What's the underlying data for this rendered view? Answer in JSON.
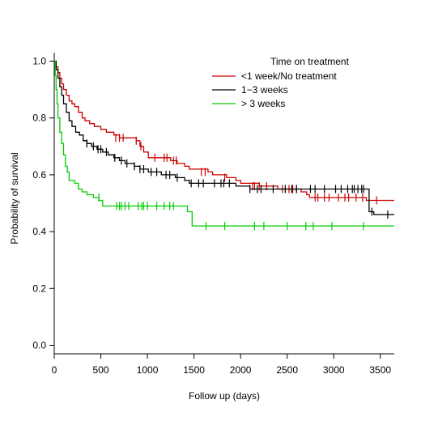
{
  "chart_data": {
    "type": "line",
    "subtype": "kaplan-meier",
    "xlabel": "Follow up (days)",
    "ylabel": "Probability of survival",
    "xlim": [
      0,
      3650
    ],
    "ylim": [
      -0.03,
      1.03
    ],
    "x_ticks": [
      0,
      500,
      1000,
      1500,
      2000,
      2500,
      3000,
      3500
    ],
    "y_ticks": [
      0.0,
      0.2,
      0.4,
      0.6,
      0.8,
      1.0
    ],
    "y_tick_labels": [
      "0.0",
      "0.2",
      "0.4",
      "0.6",
      "0.8",
      "1.0"
    ],
    "grid": false,
    "legend": {
      "title": "Time on treatment",
      "position": "top-right"
    },
    "series": [
      {
        "name": "<1 week/No treatment",
        "color": "#cc0000",
        "steps": [
          [
            0,
            1.0
          ],
          [
            20,
            0.98
          ],
          [
            40,
            0.96
          ],
          [
            60,
            0.94
          ],
          [
            80,
            0.92
          ],
          [
            100,
            0.9
          ],
          [
            130,
            0.88
          ],
          [
            160,
            0.86
          ],
          [
            190,
            0.85
          ],
          [
            220,
            0.84
          ],
          [
            260,
            0.82
          ],
          [
            300,
            0.8
          ],
          [
            330,
            0.79
          ],
          [
            380,
            0.78
          ],
          [
            430,
            0.77
          ],
          [
            500,
            0.76
          ],
          [
            560,
            0.75
          ],
          [
            640,
            0.74
          ],
          [
            700,
            0.73
          ],
          [
            780,
            0.73
          ],
          [
            880,
            0.72
          ],
          [
            920,
            0.7
          ],
          [
            960,
            0.68
          ],
          [
            1010,
            0.66
          ],
          [
            1120,
            0.66
          ],
          [
            1250,
            0.65
          ],
          [
            1320,
            0.64
          ],
          [
            1400,
            0.63
          ],
          [
            1450,
            0.62
          ],
          [
            1650,
            0.61
          ],
          [
            1700,
            0.6
          ],
          [
            1850,
            0.59
          ],
          [
            1950,
            0.58
          ],
          [
            2000,
            0.57
          ],
          [
            2200,
            0.56
          ],
          [
            2400,
            0.55
          ],
          [
            2650,
            0.54
          ],
          [
            2710,
            0.53
          ],
          [
            2740,
            0.52
          ],
          [
            3350,
            0.51
          ],
          [
            3650,
            0.51
          ]
        ],
        "censored": [
          [
            660,
            0.73
          ],
          [
            700,
            0.73
          ],
          [
            740,
            0.73
          ],
          [
            880,
            0.72
          ],
          [
            930,
            0.7
          ],
          [
            1080,
            0.66
          ],
          [
            1180,
            0.66
          ],
          [
            1210,
            0.66
          ],
          [
            1280,
            0.65
          ],
          [
            1310,
            0.65
          ],
          [
            1580,
            0.61
          ],
          [
            1620,
            0.61
          ],
          [
            1830,
            0.59
          ],
          [
            2130,
            0.56
          ],
          [
            2150,
            0.56
          ],
          [
            2200,
            0.56
          ],
          [
            2280,
            0.56
          ],
          [
            2450,
            0.55
          ],
          [
            2520,
            0.55
          ],
          [
            2560,
            0.55
          ],
          [
            2600,
            0.55
          ],
          [
            2800,
            0.52
          ],
          [
            2830,
            0.52
          ],
          [
            2900,
            0.52
          ],
          [
            2950,
            0.52
          ],
          [
            3050,
            0.52
          ],
          [
            3120,
            0.52
          ],
          [
            3160,
            0.52
          ],
          [
            3240,
            0.52
          ],
          [
            3310,
            0.52
          ],
          [
            3460,
            0.51
          ]
        ]
      },
      {
        "name": "1−3 weeks",
        "color": "#000000",
        "steps": [
          [
            0,
            1.0
          ],
          [
            20,
            0.97
          ],
          [
            40,
            0.94
          ],
          [
            60,
            0.91
          ],
          [
            80,
            0.88
          ],
          [
            100,
            0.85
          ],
          [
            130,
            0.82
          ],
          [
            160,
            0.79
          ],
          [
            190,
            0.77
          ],
          [
            230,
            0.75
          ],
          [
            270,
            0.74
          ],
          [
            310,
            0.72
          ],
          [
            350,
            0.71
          ],
          [
            400,
            0.7
          ],
          [
            460,
            0.69
          ],
          [
            520,
            0.68
          ],
          [
            580,
            0.67
          ],
          [
            640,
            0.66
          ],
          [
            700,
            0.65
          ],
          [
            760,
            0.64
          ],
          [
            860,
            0.63
          ],
          [
            920,
            0.62
          ],
          [
            1010,
            0.61
          ],
          [
            1150,
            0.6
          ],
          [
            1300,
            0.59
          ],
          [
            1400,
            0.58
          ],
          [
            1450,
            0.57
          ],
          [
            1700,
            0.57
          ],
          [
            1950,
            0.56
          ],
          [
            2100,
            0.55
          ],
          [
            3380,
            0.47
          ],
          [
            3430,
            0.46
          ],
          [
            3650,
            0.46
          ]
        ],
        "censored": [
          [
            350,
            0.71
          ],
          [
            420,
            0.7
          ],
          [
            470,
            0.69
          ],
          [
            500,
            0.69
          ],
          [
            560,
            0.68
          ],
          [
            650,
            0.66
          ],
          [
            720,
            0.65
          ],
          [
            780,
            0.64
          ],
          [
            860,
            0.63
          ],
          [
            920,
            0.62
          ],
          [
            960,
            0.62
          ],
          [
            1040,
            0.61
          ],
          [
            1100,
            0.61
          ],
          [
            1200,
            0.6
          ],
          [
            1240,
            0.6
          ],
          [
            1320,
            0.59
          ],
          [
            1470,
            0.57
          ],
          [
            1550,
            0.57
          ],
          [
            1600,
            0.57
          ],
          [
            1720,
            0.57
          ],
          [
            1790,
            0.57
          ],
          [
            1820,
            0.57
          ],
          [
            1880,
            0.57
          ],
          [
            2100,
            0.55
          ],
          [
            2180,
            0.55
          ],
          [
            2220,
            0.55
          ],
          [
            2350,
            0.55
          ],
          [
            2480,
            0.55
          ],
          [
            2550,
            0.55
          ],
          [
            2600,
            0.55
          ],
          [
            2750,
            0.55
          ],
          [
            2800,
            0.55
          ],
          [
            2900,
            0.55
          ],
          [
            3020,
            0.55
          ],
          [
            3080,
            0.55
          ],
          [
            3150,
            0.55
          ],
          [
            3200,
            0.55
          ],
          [
            3220,
            0.55
          ],
          [
            3260,
            0.55
          ],
          [
            3300,
            0.55
          ],
          [
            3320,
            0.55
          ],
          [
            3410,
            0.47
          ],
          [
            3580,
            0.46
          ]
        ]
      },
      {
        "name": "> 3 weeks",
        "color": "#00cc00",
        "steps": [
          [
            0,
            1.0
          ],
          [
            10,
            0.95
          ],
          [
            20,
            0.9
          ],
          [
            30,
            0.85
          ],
          [
            40,
            0.8
          ],
          [
            60,
            0.75
          ],
          [
            80,
            0.71
          ],
          [
            100,
            0.67
          ],
          [
            120,
            0.63
          ],
          [
            140,
            0.61
          ],
          [
            160,
            0.58
          ],
          [
            220,
            0.57
          ],
          [
            260,
            0.55
          ],
          [
            300,
            0.54
          ],
          [
            350,
            0.53
          ],
          [
            420,
            0.52
          ],
          [
            480,
            0.51
          ],
          [
            520,
            0.49
          ],
          [
            540,
            0.49
          ],
          [
            1430,
            0.47
          ],
          [
            1480,
            0.42
          ],
          [
            3650,
            0.42
          ]
        ],
        "censored": [
          [
            480,
            0.52
          ],
          [
            670,
            0.49
          ],
          [
            700,
            0.49
          ],
          [
            720,
            0.49
          ],
          [
            760,
            0.49
          ],
          [
            800,
            0.49
          ],
          [
            900,
            0.49
          ],
          [
            940,
            0.49
          ],
          [
            960,
            0.49
          ],
          [
            1000,
            0.49
          ],
          [
            1100,
            0.49
          ],
          [
            1180,
            0.49
          ],
          [
            1240,
            0.49
          ],
          [
            1280,
            0.49
          ],
          [
            1630,
            0.42
          ],
          [
            1830,
            0.42
          ],
          [
            2150,
            0.42
          ],
          [
            2250,
            0.42
          ],
          [
            2500,
            0.42
          ],
          [
            2700,
            0.42
          ],
          [
            2780,
            0.42
          ],
          [
            2980,
            0.42
          ],
          [
            3320,
            0.42
          ]
        ]
      }
    ]
  }
}
